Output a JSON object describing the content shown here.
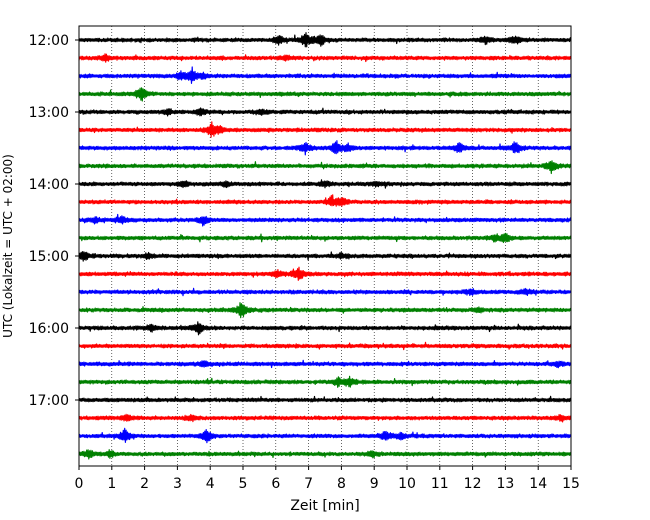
{
  "chart_data": {
    "type": "line",
    "title": "",
    "xlabel": "Zeit  [min]",
    "ylabel": "UTC (Lokalzeit = UTC + 02:00)",
    "xlim": [
      0,
      15
    ],
    "x_ticks": [
      "0",
      "1",
      "2",
      "3",
      "4",
      "5",
      "6",
      "7",
      "8",
      "9",
      "10",
      "11",
      "12",
      "13",
      "14",
      "15"
    ],
    "y_ticks": [
      "12:00",
      "13:00",
      "14:00",
      "15:00",
      "16:00",
      "17:00"
    ],
    "grid": "vertical dotted",
    "trace_colors": [
      "#000000",
      "#ff0000",
      "#0000ff",
      "#008000"
    ],
    "series": [
      {
        "start": "12:00",
        "color": "#000000",
        "events": [
          [
            6.1,
            0.45
          ],
          [
            6.9,
            0.8
          ],
          [
            7.35,
            0.7
          ],
          [
            12.4,
            0.4
          ],
          [
            13.3,
            0.45
          ]
        ]
      },
      {
        "start": "12:15",
        "color": "#ff0000",
        "events": [
          [
            0.8,
            0.35
          ],
          [
            6.3,
            0.25
          ]
        ]
      },
      {
        "start": "12:30",
        "color": "#0000ff",
        "events": [
          [
            3.1,
            0.35
          ],
          [
            3.45,
            0.8
          ],
          [
            3.8,
            0.3
          ]
        ]
      },
      {
        "start": "12:45",
        "color": "#008000",
        "events": [
          [
            1.9,
            0.8
          ]
        ]
      },
      {
        "start": "13:00",
        "color": "#000000",
        "events": [
          [
            2.7,
            0.35
          ],
          [
            3.7,
            0.45
          ],
          [
            5.6,
            0.25
          ]
        ]
      },
      {
        "start": "13:15",
        "color": "#ff0000",
        "events": [
          [
            4.05,
            0.75
          ],
          [
            4.3,
            0.3
          ]
        ]
      },
      {
        "start": "13:30",
        "color": "#0000ff",
        "events": [
          [
            6.9,
            0.55
          ],
          [
            7.85,
            0.7
          ],
          [
            8.2,
            0.4
          ],
          [
            11.6,
            0.5
          ],
          [
            13.3,
            0.65
          ]
        ]
      },
      {
        "start": "13:45",
        "color": "#008000",
        "events": [
          [
            14.4,
            0.7
          ]
        ]
      },
      {
        "start": "14:00",
        "color": "#000000",
        "events": [
          [
            3.2,
            0.3
          ],
          [
            4.5,
            0.3
          ],
          [
            7.5,
            0.3
          ],
          [
            9.1,
            0.25
          ]
        ]
      },
      {
        "start": "14:15",
        "color": "#ff0000",
        "events": [
          [
            7.7,
            0.55
          ],
          [
            8.0,
            0.45
          ]
        ]
      },
      {
        "start": "14:30",
        "color": "#0000ff",
        "events": [
          [
            0.5,
            0.3
          ],
          [
            1.3,
            0.45
          ],
          [
            3.8,
            0.45
          ]
        ]
      },
      {
        "start": "14:45",
        "color": "#008000",
        "events": [
          [
            12.7,
            0.35
          ],
          [
            13.0,
            0.45
          ]
        ]
      },
      {
        "start": "15:00",
        "color": "#000000",
        "events": [
          [
            0.15,
            0.55
          ],
          [
            2.1,
            0.3
          ],
          [
            8.0,
            0.3
          ]
        ]
      },
      {
        "start": "15:15",
        "color": "#ff0000",
        "events": [
          [
            6.05,
            0.4
          ],
          [
            6.7,
            0.75
          ]
        ]
      },
      {
        "start": "15:30",
        "color": "#0000ff",
        "events": [
          [
            11.95,
            0.35
          ],
          [
            13.65,
            0.3
          ]
        ]
      },
      {
        "start": "15:45",
        "color": "#008000",
        "events": [
          [
            4.95,
            0.95
          ],
          [
            12.2,
            0.2
          ]
        ]
      },
      {
        "start": "16:00",
        "color": "#000000",
        "events": [
          [
            2.2,
            0.4
          ],
          [
            3.65,
            0.7
          ]
        ]
      },
      {
        "start": "16:15",
        "color": "#ff0000",
        "events": []
      },
      {
        "start": "16:30",
        "color": "#0000ff",
        "events": [
          [
            3.8,
            0.25
          ],
          [
            14.6,
            0.25
          ]
        ]
      },
      {
        "start": "16:45",
        "color": "#008000",
        "events": [
          [
            7.9,
            0.45
          ],
          [
            8.25,
            0.5
          ]
        ]
      },
      {
        "start": "17:00",
        "color": "#000000",
        "events": []
      },
      {
        "start": "17:15",
        "color": "#ff0000",
        "events": [
          [
            1.45,
            0.35
          ],
          [
            3.4,
            0.35
          ],
          [
            14.7,
            0.35
          ]
        ]
      },
      {
        "start": "17:30",
        "color": "#0000ff",
        "events": [
          [
            1.4,
            0.7
          ],
          [
            3.9,
            0.7
          ],
          [
            9.35,
            0.55
          ],
          [
            9.8,
            0.3
          ]
        ]
      },
      {
        "start": "17:45",
        "color": "#008000",
        "events": [
          [
            0.3,
            0.45
          ],
          [
            0.95,
            0.35
          ],
          [
            8.95,
            0.3
          ]
        ]
      }
    ]
  }
}
